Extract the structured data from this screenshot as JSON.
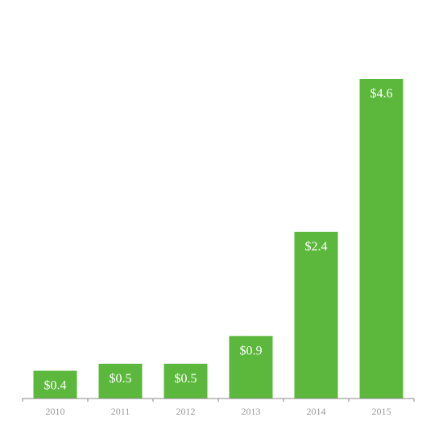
{
  "chart_data": {
    "type": "bar",
    "categories": [
      "2010",
      "2011",
      "2012",
      "2013",
      "2014",
      "2015"
    ],
    "values": [
      0.4,
      0.5,
      0.5,
      0.9,
      2.4,
      4.6
    ],
    "data_labels": [
      "$0.4",
      "$0.5",
      "$0.5",
      "$0.9",
      "$2.4",
      "$4.6"
    ],
    "title": "",
    "xlabel": "",
    "ylabel": "",
    "ylim": [
      0,
      4.6
    ],
    "grid": false,
    "legend": "none",
    "colors": {
      "bar": "#5cb83c",
      "axis": "#888888",
      "tick_label": "#999999",
      "data_label": "#ffffff"
    }
  }
}
